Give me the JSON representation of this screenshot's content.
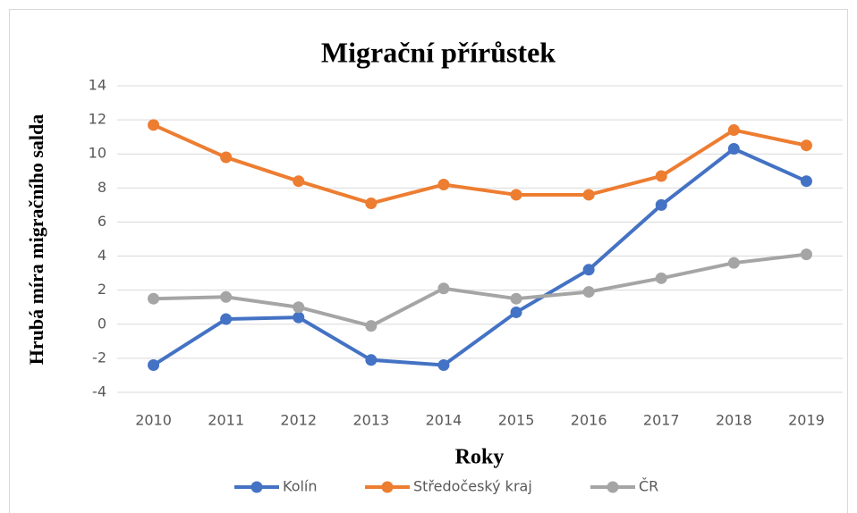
{
  "chart_data": {
    "type": "line",
    "title": "Migrační přírůstek",
    "x_label": "Roky",
    "y_label": "Hrubá míra migračního salda",
    "categories": [
      "2010",
      "2011",
      "2012",
      "2013",
      "2014",
      "2015",
      "2016",
      "2017",
      "2018",
      "2019"
    ],
    "series": [
      {
        "name": "Kolín",
        "color": "#4472c4",
        "values": [
          -2.4,
          0.3,
          0.4,
          -2.1,
          -2.4,
          0.7,
          3.2,
          7.0,
          10.3,
          8.4
        ]
      },
      {
        "name": "Středočeský kraj",
        "color": "#ed7d31",
        "values": [
          11.7,
          9.8,
          8.4,
          7.1,
          8.2,
          7.6,
          7.6,
          8.7,
          11.4,
          10.5
        ]
      },
      {
        "name": "ČR",
        "color": "#a5a5a5",
        "values": [
          1.5,
          1.6,
          1.0,
          -0.1,
          2.1,
          1.5,
          1.9,
          2.7,
          3.6,
          4.1
        ]
      }
    ],
    "ylim": [
      -4,
      14
    ],
    "yticks": [
      -4,
      -2,
      0,
      2,
      4,
      6,
      8,
      10,
      12,
      14
    ],
    "grid": true,
    "legend": "bottom"
  }
}
